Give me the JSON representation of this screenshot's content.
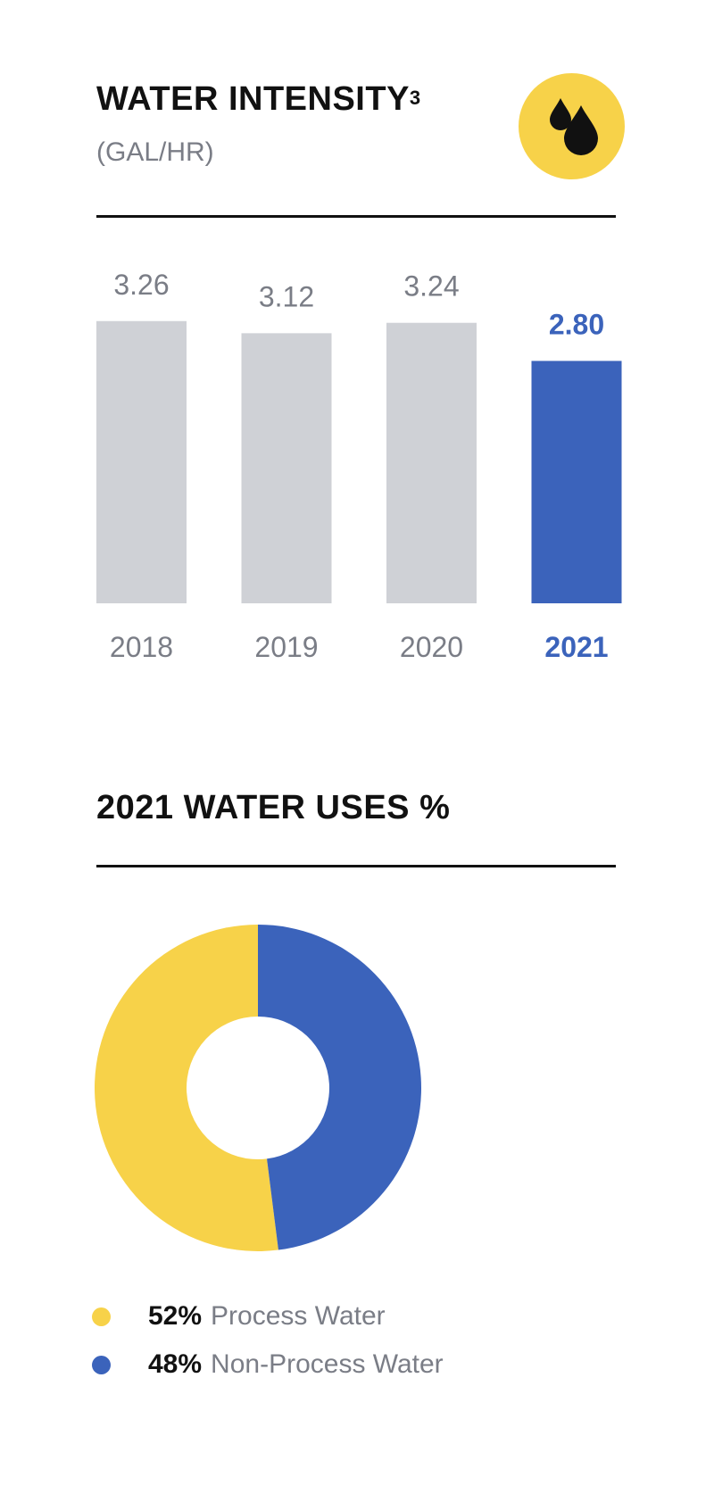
{
  "colors": {
    "accent_yellow": "#f7d249",
    "accent_blue": "#3b63bb",
    "bar_gray": "#cfd1d6",
    "muted_text": "#7a7d86",
    "heading_text": "#111111"
  },
  "header": {
    "title": "WATER INTENSITY",
    "footnote": "3",
    "units": "(GAL/HR)",
    "icon": "water-drops-icon"
  },
  "chart_data": [
    {
      "type": "bar",
      "categories": [
        "2018",
        "2019",
        "2020",
        "2021"
      ],
      "values": [
        3.26,
        3.12,
        3.24,
        2.8
      ],
      "value_labels": [
        "3.26",
        "3.12",
        "3.24",
        "2.80"
      ],
      "highlight": "2021",
      "title": "WATER INTENSITY",
      "ylabel": "(GAL/HR)",
      "grid": false
    },
    {
      "type": "pie",
      "style": "donut",
      "title": "2021 WATER USES %",
      "slices": [
        {
          "label": "Process Water",
          "value": 52,
          "display": "52%",
          "color": "#f7d249"
        },
        {
          "label": "Non-Process Water",
          "value": 48,
          "display": "48%",
          "color": "#3b63bb"
        }
      ],
      "legend": "bottom-left"
    }
  ],
  "uses": {
    "title": "2021 WATER USES %"
  }
}
